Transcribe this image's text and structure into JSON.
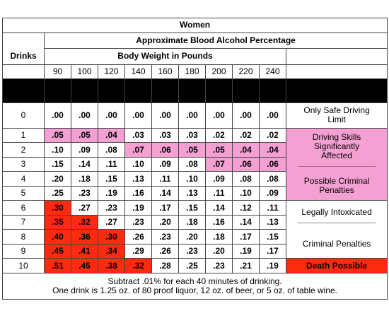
{
  "header": {
    "title": "Women",
    "subtitle": "Approximate Blood Alcohol Percentage",
    "weight_label": "Body Weight in Pounds",
    "drinks_label": "Drinks"
  },
  "weights": [
    "90",
    "100",
    "120",
    "140",
    "160",
    "180",
    "200",
    "220",
    "240"
  ],
  "rows": [
    {
      "drinks": "0",
      "values": [
        ".00",
        ".00",
        ".00",
        ".00",
        ".00",
        ".00",
        ".00",
        ".00",
        ".00"
      ]
    },
    {
      "drinks": "1",
      "values": [
        ".05",
        ".05",
        ".04",
        ".03",
        ".03",
        ".03",
        ".02",
        ".02",
        ".02"
      ]
    },
    {
      "drinks": "2",
      "values": [
        ".10",
        ".09",
        ".08",
        ".07",
        ".06",
        ".05",
        ".05",
        ".04",
        ".04"
      ]
    },
    {
      "drinks": "3",
      "values": [
        ".15",
        ".14",
        ".11",
        ".10",
        ".09",
        ".08",
        ".07",
        ".06",
        ".06"
      ]
    },
    {
      "drinks": "4",
      "values": [
        ".20",
        ".18",
        ".15",
        ".13",
        ".11",
        ".10",
        ".09",
        ".08",
        ".08"
      ]
    },
    {
      "drinks": "5",
      "values": [
        ".25",
        ".23",
        ".19",
        ".16",
        ".14",
        ".13",
        ".11",
        ".10",
        ".09"
      ]
    },
    {
      "drinks": "6",
      "values": [
        ".30",
        ".27",
        ".23",
        ".19",
        ".17",
        ".15",
        ".14",
        ".12",
        ".11"
      ]
    },
    {
      "drinks": "7",
      "values": [
        ".35",
        ".32",
        ".27",
        ".23",
        ".20",
        ".18",
        ".16",
        ".14",
        ".13"
      ]
    },
    {
      "drinks": "8",
      "values": [
        ".40",
        ".36",
        ".30",
        ".26",
        ".23",
        ".20",
        ".18",
        ".17",
        ".15"
      ]
    },
    {
      "drinks": "9",
      "values": [
        ".45",
        ".41",
        ".34",
        ".29",
        ".26",
        ".23",
        ".20",
        ".19",
        ".17"
      ]
    },
    {
      "drinks": "10",
      "values": [
        ".51",
        ".45",
        ".38",
        ".32",
        ".28",
        ".25",
        ".23",
        ".21",
        ".19"
      ]
    }
  ],
  "shading": [
    [
      "w",
      "w",
      "w",
      "w",
      "w",
      "w",
      "w",
      "w",
      "w"
    ],
    [
      "p",
      "p",
      "p",
      "w",
      "w",
      "w",
      "w",
      "w",
      "w"
    ],
    [
      "w",
      "w",
      "w",
      "p",
      "p",
      "p",
      "p",
      "p",
      "p"
    ],
    [
      "w",
      "w",
      "w",
      "w",
      "w",
      "w",
      "p",
      "p",
      "p"
    ],
    [
      "w",
      "w",
      "w",
      "w",
      "w",
      "w",
      "w",
      "w",
      "w"
    ],
    [
      "w",
      "w",
      "w",
      "w",
      "w",
      "w",
      "w",
      "w",
      "w"
    ],
    [
      "r",
      "w",
      "w",
      "w",
      "w",
      "w",
      "w",
      "w",
      "w"
    ],
    [
      "r",
      "r",
      "w",
      "w",
      "w",
      "w",
      "w",
      "w",
      "w"
    ],
    [
      "r",
      "r",
      "r",
      "w",
      "w",
      "w",
      "w",
      "w",
      "w"
    ],
    [
      "r",
      "r",
      "r",
      "w",
      "w",
      "w",
      "w",
      "w",
      "w"
    ],
    [
      "r",
      "r",
      "r",
      "r",
      "w",
      "w",
      "w",
      "w",
      "w"
    ]
  ],
  "status": {
    "safe": "Only Safe Driving Limit",
    "impaired": "Driving Skills Significantly Affected",
    "possible_penalties": "Possible Criminal Penalties",
    "legally_intoxicated": "Legally Intoxicated",
    "criminal_penalties": "Criminal Penalties",
    "death": "Death Possible"
  },
  "footer": {
    "line1": "Subtract .01% for each 40 minutes of drinking.",
    "line2": "One drink is 1.25 oz. of 80 proof liquor, 12 oz. of beer, or 5 oz. of table wine."
  },
  "colors": {
    "pink": "#f4a0d2",
    "red": "#ff2a10",
    "black_band": "#000000"
  }
}
